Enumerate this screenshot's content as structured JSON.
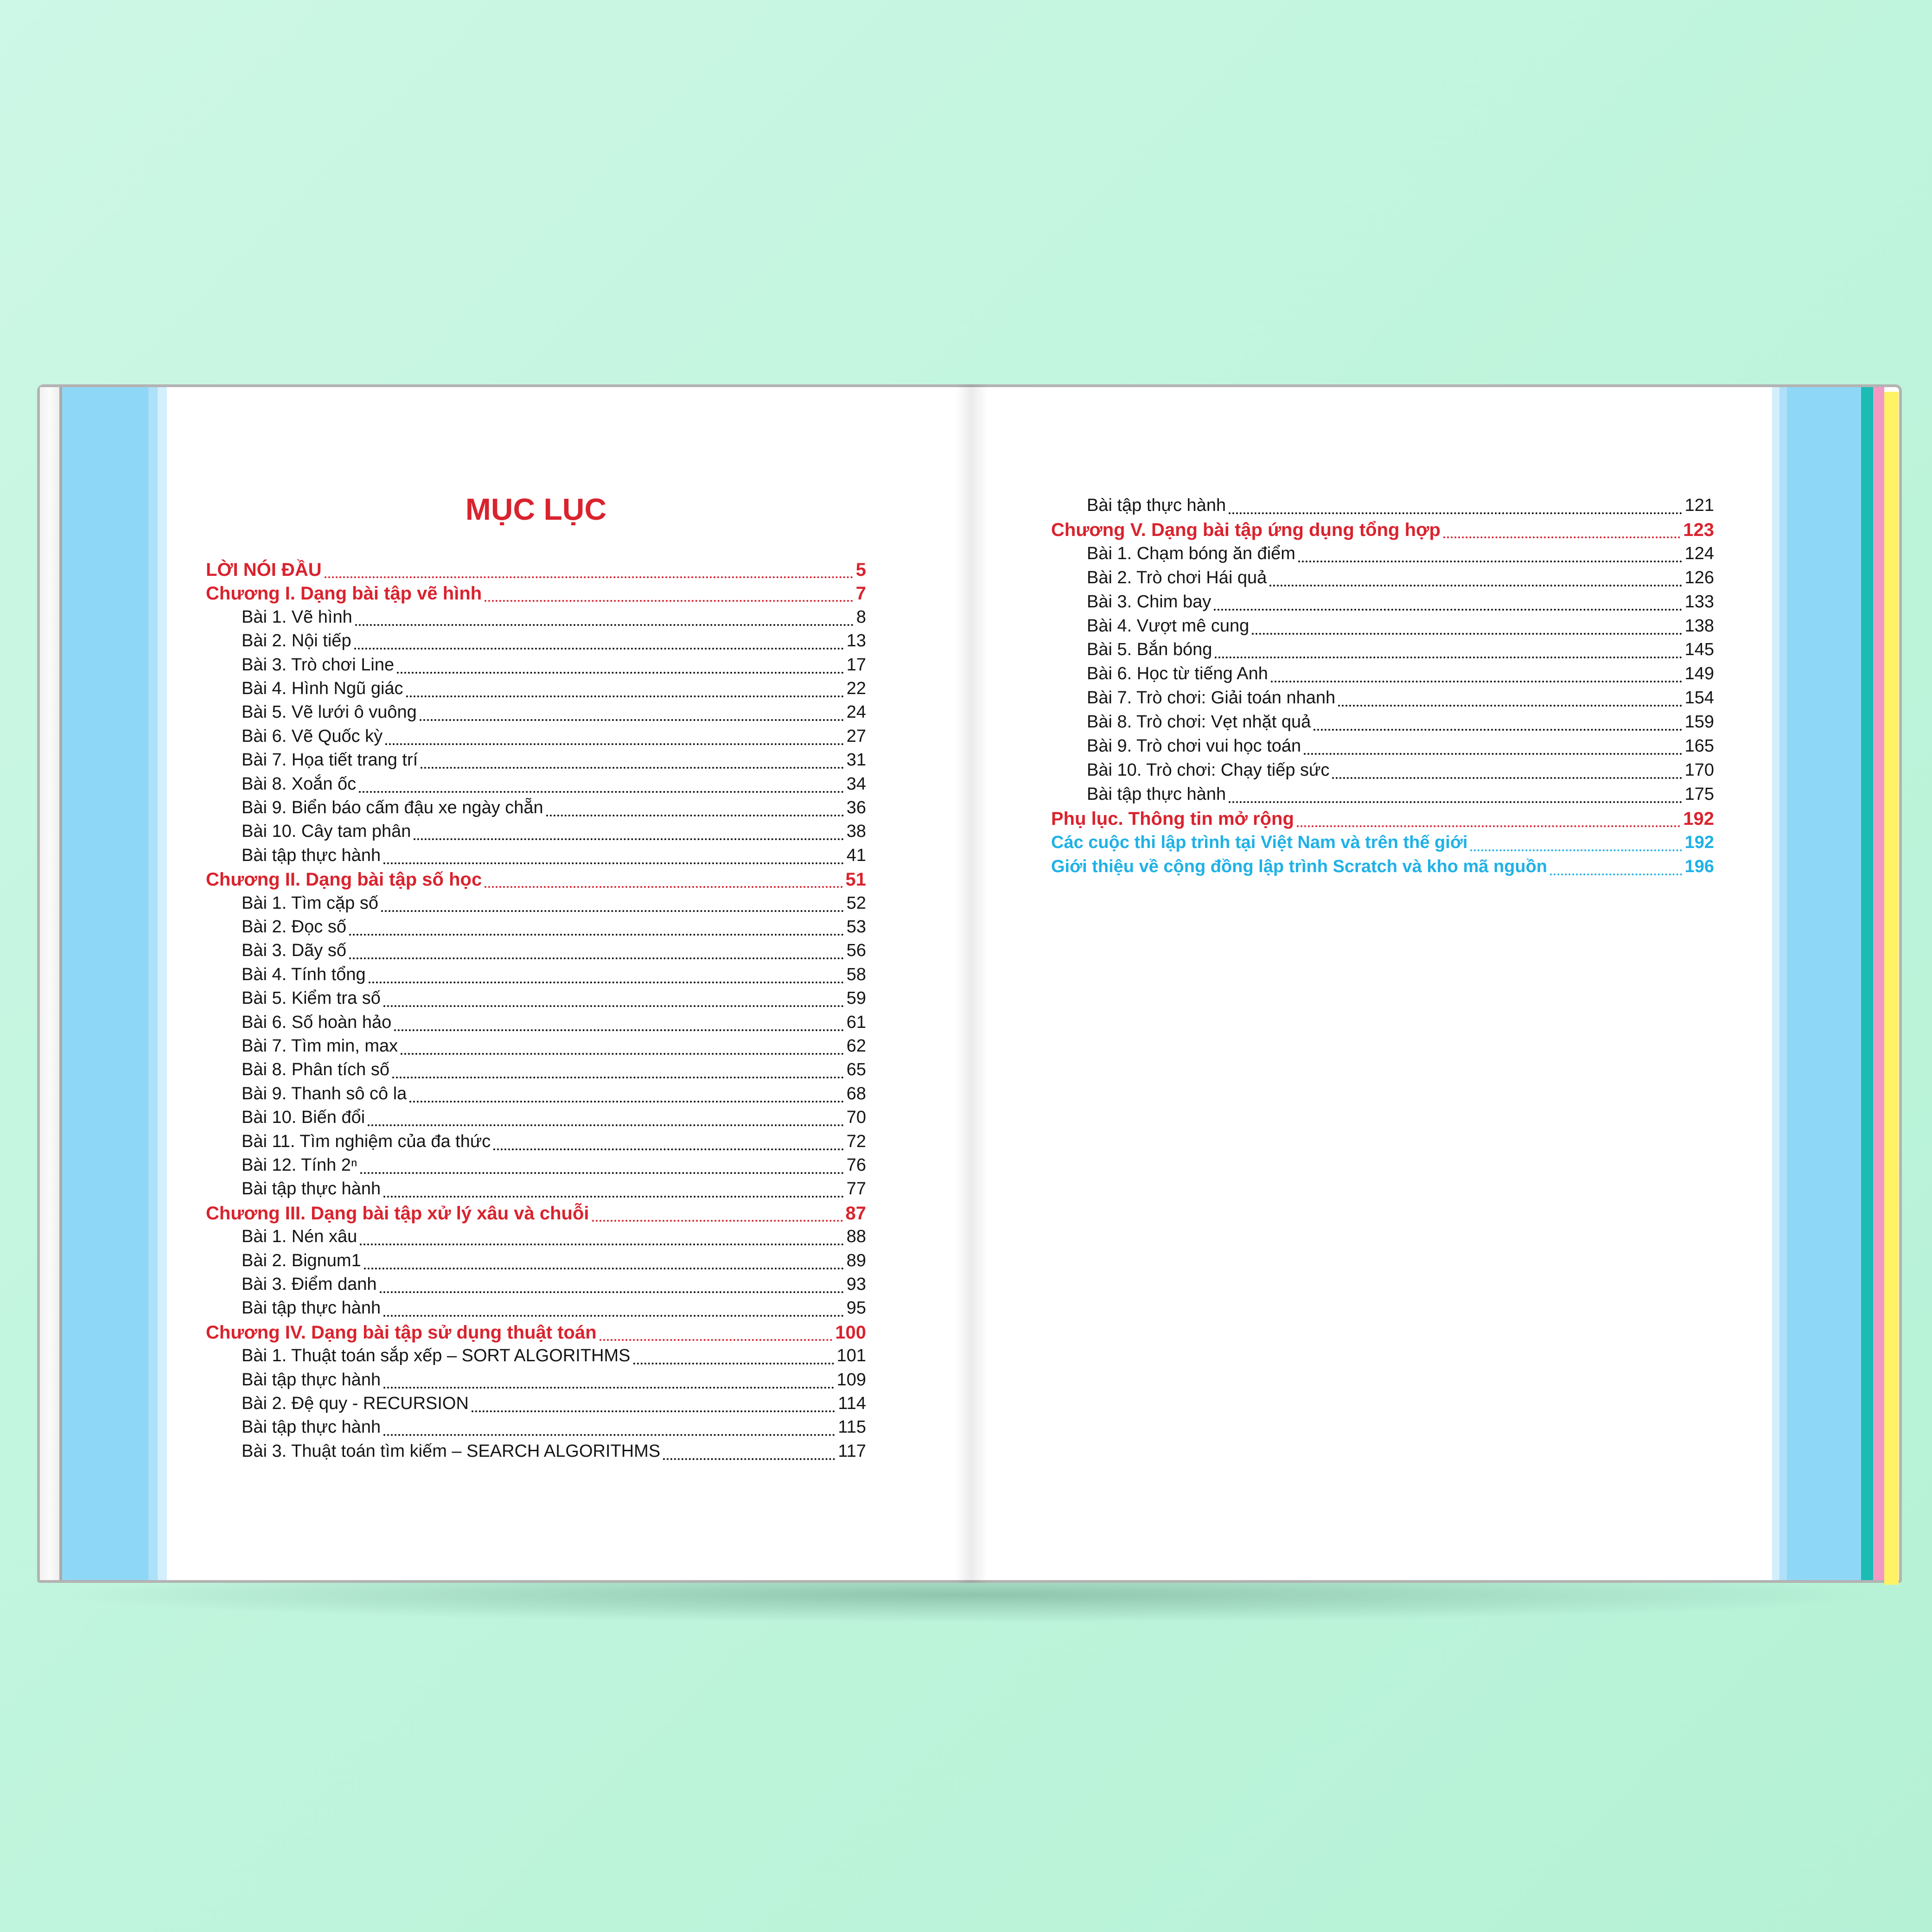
{
  "colors": {
    "background": "#c4f5de",
    "heading_red": "#d9232e",
    "link_blue": "#1fb1e6",
    "strip_blue": "#8fd7f7",
    "tab_teal": "#1bbcb3",
    "tab_pink": "#f39ac4",
    "tab_yellow": "#fff265"
  },
  "left_page": {
    "title": "MỤC LỤC",
    "entries": [
      {
        "level": "chapter",
        "text": "LỜI NÓI ĐẦU",
        "page": "5"
      },
      {
        "level": "chapter",
        "text": "Chương I. Dạng bài tập vẽ hình",
        "page": "7"
      },
      {
        "level": "item",
        "text": "Bài 1. Vẽ hình",
        "page": "8"
      },
      {
        "level": "item",
        "text": "Bài 2. Nội tiếp",
        "page": "13"
      },
      {
        "level": "item",
        "text": "Bài 3. Trò chơi Line",
        "page": "17"
      },
      {
        "level": "item",
        "text": "Bài 4. Hình Ngũ giác",
        "page": "22"
      },
      {
        "level": "item",
        "text": "Bài 5. Vẽ lưới ô vuông",
        "page": "24"
      },
      {
        "level": "item",
        "text": "Bài 6. Vẽ Quốc kỳ",
        "page": "27"
      },
      {
        "level": "item",
        "text": "Bài 7. Họa tiết trang trí",
        "page": "31"
      },
      {
        "level": "item",
        "text": "Bài 8. Xoắn ốc",
        "page": "34"
      },
      {
        "level": "item",
        "text": "Bài 9. Biển báo cấm đậu xe ngày chẵn",
        "page": "36"
      },
      {
        "level": "item",
        "text": "Bài 10. Cây tam phân",
        "page": "38"
      },
      {
        "level": "item",
        "text": "Bài tập thực hành",
        "page": "41"
      },
      {
        "level": "chapter",
        "text": "Chương II. Dạng bài tập số học",
        "page": "51"
      },
      {
        "level": "item",
        "text": "Bài 1. Tìm cặp số",
        "page": "52"
      },
      {
        "level": "item",
        "text": "Bài 2. Đọc số",
        "page": "53"
      },
      {
        "level": "item",
        "text": "Bài 3. Dãy số",
        "page": "56"
      },
      {
        "level": "item",
        "text": "Bài 4. Tính tổng",
        "page": "58"
      },
      {
        "level": "item",
        "text": "Bài 5. Kiểm tra số",
        "page": "59"
      },
      {
        "level": "item",
        "text": "Bài 6. Số hoàn hảo",
        "page": "61"
      },
      {
        "level": "item",
        "text": "Bài 7. Tìm min, max",
        "page": "62"
      },
      {
        "level": "item",
        "text": "Bài 8. Phân tích số",
        "page": "65"
      },
      {
        "level": "item",
        "text": "Bài 9. Thanh sô cô la",
        "page": "68"
      },
      {
        "level": "item",
        "text": "Bài 10. Biến đổi",
        "page": "70"
      },
      {
        "level": "item",
        "text": "Bài 11. Tìm nghiệm của đa thức",
        "page": "72"
      },
      {
        "level": "item",
        "text": "Bài 12. Tính 2ⁿ",
        "page": "76"
      },
      {
        "level": "item",
        "text": "Bài tập thực hành",
        "page": "77"
      },
      {
        "level": "chapter",
        "text": "Chương III. Dạng bài tập xử lý xâu và chuỗi",
        "page": "87"
      },
      {
        "level": "item",
        "text": "Bài 1. Nén xâu",
        "page": "88"
      },
      {
        "level": "item",
        "text": "Bài 2. Bignum1",
        "page": "89"
      },
      {
        "level": "item",
        "text": "Bài 3. Điểm danh",
        "page": "93"
      },
      {
        "level": "item",
        "text": "Bài tập thực hành",
        "page": "95"
      },
      {
        "level": "chapter",
        "text": "Chương IV. Dạng bài tập sử dụng thuật toán",
        "page": "100"
      },
      {
        "level": "item",
        "text": "Bài 1. Thuật toán sắp xếp – SORT ALGORITHMS",
        "page": "101"
      },
      {
        "level": "item",
        "text": "Bài tập thực hành",
        "page": "109"
      },
      {
        "level": "item",
        "text": "Bài 2. Đệ quy - RECURSION",
        "page": "114"
      },
      {
        "level": "item",
        "text": "Bài tập thực hành",
        "page": "115"
      },
      {
        "level": "item",
        "text": "Bài 3. Thuật toán tìm kiếm – SEARCH ALGORITHMS",
        "page": "117"
      }
    ]
  },
  "right_page": {
    "entries": [
      {
        "level": "item",
        "text": "Bài tập thực hành",
        "page": "121"
      },
      {
        "level": "chapter",
        "text": "Chương V. Dạng bài tập ứng dụng tổng hợp",
        "page": "123"
      },
      {
        "level": "item",
        "text": "Bài 1. Chạm bóng ăn điểm",
        "page": "124"
      },
      {
        "level": "item",
        "text": "Bài 2. Trò chơi Hái quả",
        "page": "126"
      },
      {
        "level": "item",
        "text": "Bài 3. Chim bay",
        "page": "133"
      },
      {
        "level": "item",
        "text": "Bài 4. Vượt mê cung",
        "page": "138"
      },
      {
        "level": "item",
        "text": "Bài 5. Bắn bóng",
        "page": "145"
      },
      {
        "level": "item",
        "text": "Bài 6. Học từ tiếng Anh",
        "page": "149"
      },
      {
        "level": "item",
        "text": "Bài 7. Trò chơi: Giải toán nhanh",
        "page": "154"
      },
      {
        "level": "item",
        "text": "Bài 8. Trò chơi: Vẹt nhặt quả",
        "page": "159"
      },
      {
        "level": "item",
        "text": "Bài 9. Trò chơi vui học toán",
        "page": "165"
      },
      {
        "level": "item",
        "text": "Bài 10. Trò chơi: Chạy tiếp sức",
        "page": "170"
      },
      {
        "level": "item",
        "text": "Bài tập thực hành",
        "page": "175"
      },
      {
        "level": "chapter",
        "text": "Phụ lục. Thông tin mở rộng",
        "page": "192"
      },
      {
        "level": "appendix",
        "text": "Các cuộc thi lập trình tại Việt Nam và trên thế giới",
        "page": "192"
      },
      {
        "level": "appendix",
        "text": "Giới thiệu về cộng đồng lập trình Scratch và kho mã nguồn",
        "page": "196"
      }
    ]
  }
}
